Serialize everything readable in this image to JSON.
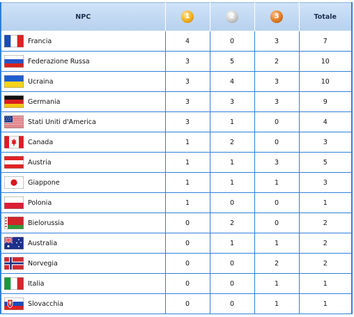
{
  "headers": {
    "npc": "NPC",
    "gold": "1",
    "silver": "2",
    "bronze": "3",
    "total": "Totale"
  },
  "colors": {
    "gold": "#f1ad1d",
    "silver": "#c9c9c9",
    "bronze": "#e07a22",
    "grid": "#2f7fd8",
    "header_bg": "#c2d8f2"
  },
  "rows": [
    {
      "country": "Francia",
      "flag": "france-flag-icon",
      "gold": "4",
      "silver": "0",
      "bronze": "3",
      "total": "7"
    },
    {
      "country": "Federazione Russa",
      "flag": "russia-flag-icon",
      "gold": "3",
      "silver": "5",
      "bronze": "2",
      "total": "10"
    },
    {
      "country": "Ucraina",
      "flag": "ukraine-flag-icon",
      "gold": "3",
      "silver": "4",
      "bronze": "3",
      "total": "10"
    },
    {
      "country": "Germania",
      "flag": "germany-flag-icon",
      "gold": "3",
      "silver": "3",
      "bronze": "3",
      "total": "9"
    },
    {
      "country": "Stati Uniti d'America",
      "flag": "usa-flag-icon",
      "gold": "3",
      "silver": "1",
      "bronze": "0",
      "total": "4"
    },
    {
      "country": "Canada",
      "flag": "canada-flag-icon",
      "gold": "1",
      "silver": "2",
      "bronze": "0",
      "total": "3"
    },
    {
      "country": "Austria",
      "flag": "austria-flag-icon",
      "gold": "1",
      "silver": "1",
      "bronze": "3",
      "total": "5"
    },
    {
      "country": "Giappone",
      "flag": "japan-flag-icon",
      "gold": "1",
      "silver": "1",
      "bronze": "1",
      "total": "3"
    },
    {
      "country": "Polonia",
      "flag": "poland-flag-icon",
      "gold": "1",
      "silver": "0",
      "bronze": "0",
      "total": "1"
    },
    {
      "country": "Bielorussia",
      "flag": "belarus-flag-icon",
      "gold": "0",
      "silver": "2",
      "bronze": "0",
      "total": "2"
    },
    {
      "country": "Australia",
      "flag": "australia-flag-icon",
      "gold": "0",
      "silver": "1",
      "bronze": "1",
      "total": "2"
    },
    {
      "country": "Norvegia",
      "flag": "norway-flag-icon",
      "gold": "0",
      "silver": "0",
      "bronze": "2",
      "total": "2"
    },
    {
      "country": "Italia",
      "flag": "italy-flag-icon",
      "gold": "0",
      "silver": "0",
      "bronze": "1",
      "total": "1"
    },
    {
      "country": "Slovacchia",
      "flag": "slovakia-flag-icon",
      "gold": "0",
      "silver": "0",
      "bronze": "1",
      "total": "1"
    }
  ]
}
